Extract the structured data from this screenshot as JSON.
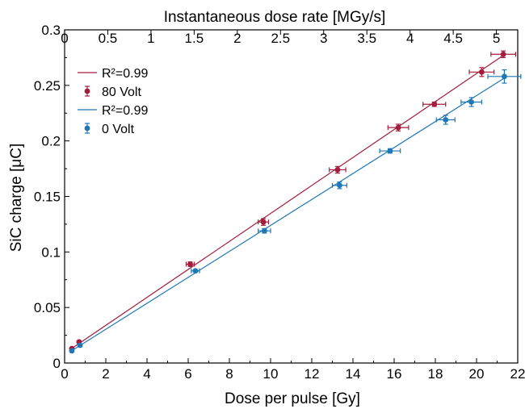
{
  "chart_data": {
    "type": "scatter",
    "xlabel": "Dose per pulse [Gy]",
    "ylabel": "SiC charge [μC]",
    "top_xlabel": "Instantaneous dose rate [MGy/s]",
    "xlim": [
      0,
      22
    ],
    "ylim": [
      0,
      0.3
    ],
    "x_ticks": [
      "0",
      "2",
      "4",
      "6",
      "8",
      "10",
      "12",
      "14",
      "16",
      "18",
      "20",
      "22"
    ],
    "y_ticks": [
      "0",
      "0.05",
      "0.1",
      "0.15",
      "0.2",
      "0.25",
      "0.3"
    ],
    "top_ticks": [
      "0",
      "0.5",
      "1",
      "1.5",
      "2",
      "2.5",
      "3",
      "3.5",
      "4",
      "4.5",
      "5"
    ],
    "top_tick_scale": 0.2385,
    "grid": false,
    "legend_position": "top-left",
    "legend": [
      {
        "label": "R²=0.99",
        "kind": "line",
        "color": "#a31c3c"
      },
      {
        "label": "80 Volt",
        "kind": "marker",
        "color": "#a31c3c"
      },
      {
        "label": "R²=0.99",
        "kind": "line",
        "color": "#1f77b4"
      },
      {
        "label": "0 Volt",
        "kind": "marker",
        "color": "#1f77b4"
      }
    ],
    "series": [
      {
        "name": "80 Volt",
        "color": "#a31c3c",
        "x": [
          0.35,
          0.7,
          6.1,
          9.65,
          13.25,
          16.2,
          17.95,
          20.25,
          21.3
        ],
        "y": [
          0.013,
          0.019,
          0.089,
          0.127,
          0.174,
          0.212,
          0.233,
          0.262,
          0.278
        ],
        "x_err": [
          0.05,
          0.05,
          0.2,
          0.25,
          0.4,
          0.5,
          0.55,
          0.6,
          0.6
        ],
        "y_err": [
          0.001,
          0.001,
          0.002,
          0.003,
          0.003,
          0.003,
          0.002,
          0.004,
          0.003
        ],
        "fit": {
          "r2_label": "R²=0.99",
          "x": [
            0.3,
            21.3
          ],
          "y": [
            0.0125,
            0.277
          ]
        }
      },
      {
        "name": "0 Volt",
        "color": "#1f77b4",
        "x": [
          0.35,
          0.75,
          6.35,
          9.7,
          13.35,
          15.8,
          18.5,
          19.75,
          21.35
        ],
        "y": [
          0.011,
          0.016,
          0.083,
          0.119,
          0.16,
          0.191,
          0.219,
          0.235,
          0.258
        ],
        "x_err": [
          0.05,
          0.05,
          0.2,
          0.3,
          0.35,
          0.5,
          0.45,
          0.5,
          0.8
        ],
        "y_err": [
          0.001,
          0.001,
          0.001,
          0.002,
          0.003,
          0.002,
          0.004,
          0.004,
          0.006
        ],
        "fit": {
          "r2_label": "R²=0.99",
          "x": [
            0.3,
            21.3
          ],
          "y": [
            0.0105,
            0.256
          ]
        }
      }
    ]
  }
}
